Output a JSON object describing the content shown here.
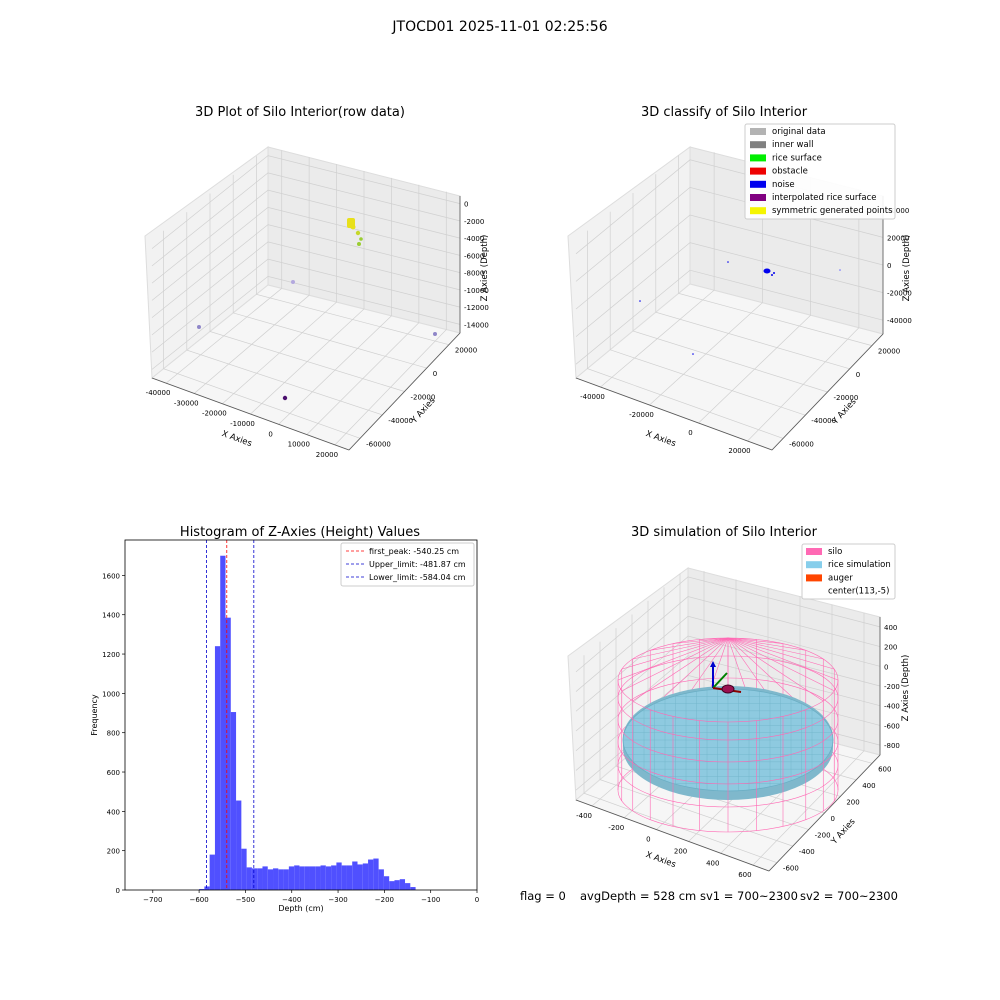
{
  "suptitle": "JTOCD01 2025-11-01 02:25:56",
  "footer": {
    "flag": "flag = 0",
    "avg_depth": "avgDepth = 528 cm",
    "sv1": "sv1 = 700~2300",
    "sv2": "sv2 = 700~2300"
  },
  "chart_data": [
    {
      "type": "scatter",
      "title": "3D Plot of Silo Interior(row data)",
      "xlabel": "X Axies",
      "ylabel": "Y Axies",
      "zlabel": "Z Axies (Depth)",
      "x_ticks": [
        "-40000",
        "-30000",
        "-20000",
        "-10000",
        "0",
        "10000",
        "20000"
      ],
      "y_ticks": [
        "20000",
        "0",
        "-20000",
        "-40000",
        "-60000"
      ],
      "z_ticks": [
        "0",
        "-2000",
        "-4000",
        "-6000",
        "-8000",
        "-10000",
        "-12000",
        "-14000"
      ],
      "colors": {
        "cluster": "#e8e01a",
        "tail": "#9acd32",
        "outlier_a": "#9b8fd6",
        "outlier_b": "#4b0f6e"
      }
    },
    {
      "type": "scatter",
      "title": "3D classify of Silo Interior",
      "xlabel": "X Axies",
      "ylabel": "Y Axies",
      "zlabel": "Z Axies (Depth)",
      "x_ticks": [
        "-40000",
        "-20000",
        "0",
        "20000"
      ],
      "y_ticks": [
        "20000",
        "0",
        "-20000",
        "-40000",
        "-60000"
      ],
      "z_ticks": [
        "40000",
        "20000",
        "0",
        "-20000",
        "-40000"
      ],
      "legend": [
        {
          "label": "original data",
          "color": "#b3b3b3"
        },
        {
          "label": "inner wall",
          "color": "#808080"
        },
        {
          "label": "rice surface",
          "color": "#00ee00"
        },
        {
          "label": "obstacle",
          "color": "#ee0000"
        },
        {
          "label": "noise",
          "color": "#0000ee"
        },
        {
          "label": "interpolated rice surface",
          "color": "#800080"
        },
        {
          "label": "symmetric generated points",
          "color": "#f5f500"
        }
      ],
      "legend_position": "top-right"
    },
    {
      "type": "bar",
      "title": "Histogram of Z-Axies (Height) Values",
      "xlabel": "Depth (cm)",
      "ylabel": "Frequency",
      "xlim": [
        -760,
        0
      ],
      "ylim": [
        0,
        1780
      ],
      "x_ticks": [
        -700,
        -600,
        -500,
        -400,
        -300,
        -200,
        -100,
        0
      ],
      "y_ticks": [
        0,
        200,
        400,
        600,
        800,
        1000,
        1200,
        1400,
        1600
      ],
      "bar_color": "#5050ff",
      "bin_width": 11.4,
      "bin_start": -600,
      "values": [
        5,
        18,
        180,
        1240,
        1700,
        1385,
        905,
        455,
        210,
        115,
        110,
        110,
        120,
        105,
        110,
        105,
        105,
        120,
        125,
        120,
        120,
        120,
        120,
        125,
        120,
        125,
        140,
        125,
        125,
        145,
        130,
        135,
        155,
        160,
        105,
        70,
        45,
        50,
        55,
        35,
        15
      ],
      "lines": [
        {
          "label": "first_peak: -540.25 cm",
          "x": -540.25,
          "color": "#ff0000"
        },
        {
          "label": "Upper_limit: -481.87 cm",
          "x": -481.87,
          "color": "#0000cc"
        },
        {
          "label": "Lower_limit: -584.04 cm",
          "x": -584.04,
          "color": "#0000cc"
        }
      ],
      "legend_position": "top-right"
    },
    {
      "type": "scatter",
      "title": "3D simulation of Silo Interior",
      "xlabel": "X Axies",
      "ylabel": "Y Axies",
      "zlabel": "Z Axies (Depth)",
      "x_ticks": [
        "-400",
        "-200",
        "0",
        "200",
        "400",
        "600"
      ],
      "y_ticks": [
        "600",
        "400",
        "200",
        "0",
        "-200",
        "-400",
        "-600"
      ],
      "z_ticks": [
        "400",
        "200",
        "0",
        "-200",
        "-400",
        "-600",
        "-800"
      ],
      "legend": [
        {
          "label": "silo",
          "color": "#ff69b4"
        },
        {
          "label": "rice simulation",
          "color": "#87ceeb"
        },
        {
          "label": "auger",
          "color": "#ff4500"
        },
        {
          "label": "center(113,-5)",
          "color": "#ffffff"
        }
      ],
      "legend_position": "top-right"
    }
  ]
}
